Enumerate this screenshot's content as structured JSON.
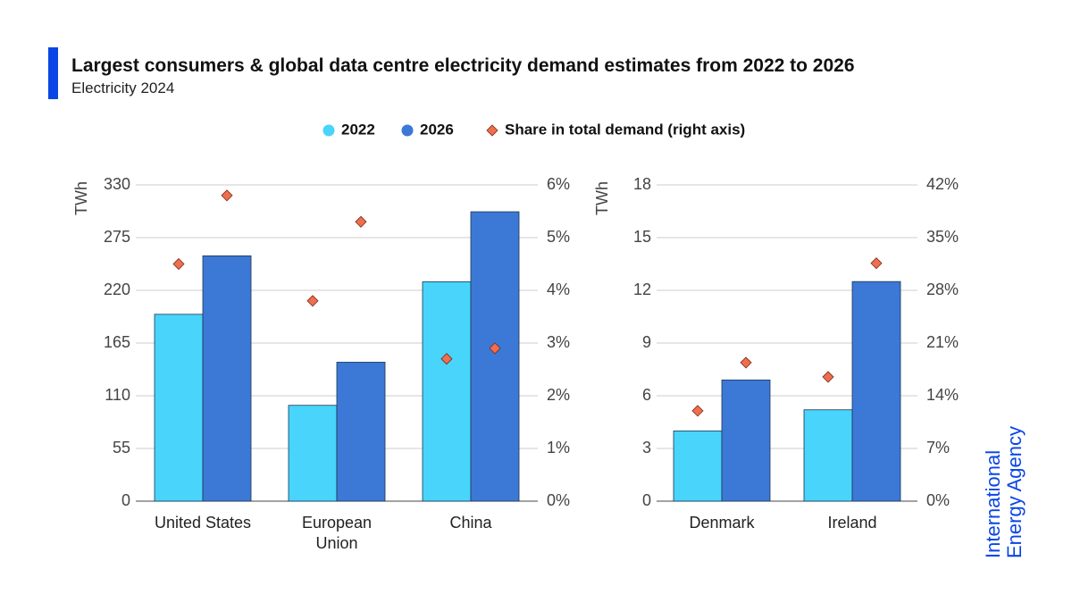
{
  "header": {
    "title": "Largest consumers & global data centre electricity demand estimates from 2022 to 2026",
    "subtitle": "Electricity 2024"
  },
  "brand": {
    "lines": [
      "International",
      "Energy Agency"
    ]
  },
  "chart_data": [
    {
      "type": "bar",
      "y_label": "TWh",
      "categories": [
        "United States",
        "European Union",
        "China"
      ],
      "series": [
        {
          "name": "2022",
          "color": "#48d4fb",
          "values": [
            195,
            100,
            229
          ]
        },
        {
          "name": "2026",
          "color": "#3c78d6",
          "values": [
            256,
            145,
            302
          ]
        },
        {
          "name": "Share in total demand (right axis)",
          "type": "scatter",
          "axis": "y2",
          "color": "#ef6e4e",
          "values": [
            [
              4.5,
              5.8
            ],
            [
              3.8,
              5.3
            ],
            [
              2.7,
              2.9
            ]
          ]
        }
      ],
      "ylim": [
        0,
        330
      ],
      "yticks": [
        0,
        55,
        110,
        165,
        220,
        275,
        330
      ],
      "y2lim": [
        0,
        6
      ],
      "y2ticks": [
        {
          "value": 0,
          "label": "0%"
        },
        {
          "value": 1,
          "label": "1%"
        },
        {
          "value": 2,
          "label": "2%"
        },
        {
          "value": 3,
          "label": "3%"
        },
        {
          "value": 4,
          "label": "4%"
        },
        {
          "value": 5,
          "label": "5%"
        },
        {
          "value": 6,
          "label": "6%"
        }
      ],
      "grid": true
    },
    {
      "type": "bar",
      "y_label": "TWh",
      "categories": [
        "Denmark",
        "Ireland"
      ],
      "series": [
        {
          "color": "#48d4fb",
          "values": [
            4,
            5.2
          ]
        },
        {
          "color": "#3c78d6",
          "values": [
            6.9,
            12.5
          ]
        },
        {
          "type": "scatter",
          "axis": "y2",
          "color": "#ef6e4e",
          "values": [
            [
              12,
              18.4
            ],
            [
              16.5,
              31.6
            ]
          ]
        }
      ],
      "ylim": [
        0,
        18
      ],
      "yticks": [
        0,
        3,
        6,
        9,
        12,
        15,
        18
      ],
      "y2lim": [
        0,
        42
      ],
      "y2ticks": [
        {
          "value": 0,
          "label": "0%"
        },
        {
          "value": 7,
          "label": "7%"
        },
        {
          "value": 14,
          "label": "14%"
        },
        {
          "value": 21,
          "label": "21%"
        },
        {
          "value": 28,
          "label": "28%"
        },
        {
          "value": 35,
          "label": "35%"
        },
        {
          "value": 42,
          "label": "42%"
        }
      ],
      "grid": true
    }
  ]
}
